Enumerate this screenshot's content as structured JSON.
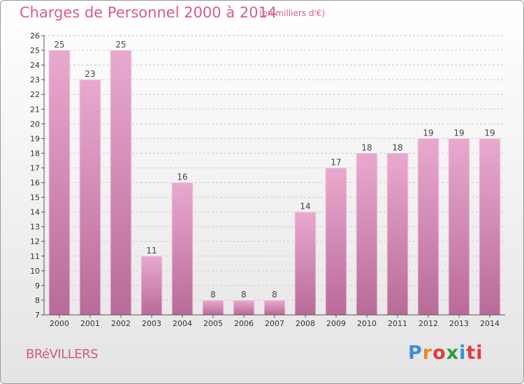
{
  "title": "Charges de Personnel 2000 à 2014",
  "subtitle": "(en milliers d'€)",
  "commune": "BRéVILLERS",
  "logo": {
    "text": "Proxiti",
    "parts": [
      "P",
      "r",
      "o",
      "x",
      "i",
      "ti"
    ]
  },
  "colors": {
    "bar_top": "#e9a9cf",
    "bar_bottom": "#b86b98",
    "accent": "#d85c8a"
  },
  "chart_data": {
    "type": "bar",
    "categories": [
      "2000",
      "2001",
      "2002",
      "2003",
      "2004",
      "2005",
      "2006",
      "2007",
      "2008",
      "2009",
      "2010",
      "2011",
      "2012",
      "2013",
      "2014"
    ],
    "values": [
      25,
      23,
      25,
      11,
      16,
      8,
      8,
      8,
      14,
      17,
      18,
      18,
      19,
      19,
      19
    ],
    "ylim": [
      7,
      26
    ],
    "yticks": [
      7,
      8,
      9,
      10,
      11,
      12,
      13,
      14,
      15,
      16,
      17,
      18,
      19,
      20,
      21,
      22,
      23,
      24,
      25,
      26
    ],
    "grid": true,
    "xlabel": "",
    "ylabel": ""
  }
}
